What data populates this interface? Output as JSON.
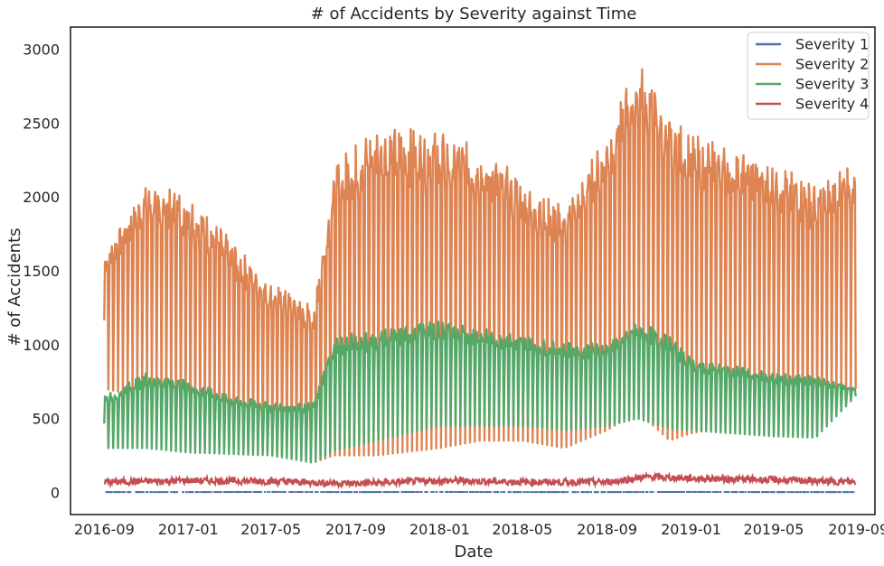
{
  "chart_data": {
    "type": "line",
    "title": "# of Accidents by Severity against Time",
    "xlabel": "Date",
    "ylabel": "# of Accidents",
    "x_range": [
      "2016-07-14",
      "2019-09-25"
    ],
    "ylim": [
      -150,
      3150
    ],
    "x_ticks": [
      "2016-09",
      "2017-01",
      "2017-05",
      "2017-09",
      "2018-01",
      "2018-05",
      "2018-09",
      "2019-01",
      "2019-05",
      "2019-09"
    ],
    "y_ticks": [
      0,
      500,
      1000,
      1500,
      2000,
      2500,
      3000
    ],
    "grid": false,
    "legend_position": "top-right",
    "frequency": "daily",
    "series": [
      {
        "name": "Severity 1",
        "color": "#4c72b0",
        "style": "sparse dotted near zero",
        "x": [
          "2016-09-01",
          "2017-01-01",
          "2017-05-01",
          "2017-09-01",
          "2018-01-01",
          "2018-05-01",
          "2018-09-01",
          "2019-01-01",
          "2019-05-01",
          "2019-08-28"
        ],
        "values": [
          2,
          2,
          3,
          2,
          3,
          2,
          2,
          3,
          2,
          2
        ]
      },
      {
        "name": "Severity 2",
        "color": "#dd8452",
        "style": "weekly oscillation (weekday peaks, weekend troughs)",
        "x": [
          "2016-09-01",
          "2016-11-01",
          "2017-01-01",
          "2017-03-01",
          "2017-05-01",
          "2017-07-01",
          "2017-08-01",
          "2017-10-01",
          "2018-01-01",
          "2018-03-01",
          "2018-05-01",
          "2018-07-01",
          "2018-09-01",
          "2018-10-15",
          "2018-12-01",
          "2019-01-01",
          "2019-03-01",
          "2019-05-01",
          "2019-07-01",
          "2019-08-28"
        ],
        "peak": [
          1600,
          2050,
          2000,
          1700,
          1400,
          1250,
          2200,
          2450,
          2400,
          2300,
          2100,
          1900,
          2400,
          2900,
          2500,
          2400,
          2300,
          2200,
          2050,
          2200
        ],
        "trough": [
          700,
          650,
          350,
          300,
          280,
          200,
          250,
          250,
          300,
          350,
          350,
          300,
          420,
          550,
          350,
          400,
          450,
          400,
          380,
          700
        ]
      },
      {
        "name": "Severity 3",
        "color": "#55a868",
        "style": "weekly oscillation (weekday peaks, weekend troughs)",
        "x": [
          "2016-09-01",
          "2016-11-01",
          "2017-01-01",
          "2017-03-01",
          "2017-05-01",
          "2017-07-01",
          "2017-08-01",
          "2017-10-01",
          "2018-01-01",
          "2018-03-01",
          "2018-05-01",
          "2018-07-01",
          "2018-09-01",
          "2018-10-15",
          "2018-12-01",
          "2019-01-01",
          "2019-03-01",
          "2019-05-01",
          "2019-07-01",
          "2019-08-28"
        ],
        "peak": [
          650,
          800,
          750,
          650,
          600,
          600,
          1050,
          1080,
          1150,
          1100,
          1050,
          1000,
          1000,
          1150,
          1050,
          900,
          850,
          800,
          780,
          700
        ],
        "trough": [
          300,
          300,
          270,
          260,
          250,
          200,
          280,
          350,
          450,
          450,
          450,
          420,
          450,
          500,
          430,
          420,
          400,
          380,
          370,
          650
        ]
      },
      {
        "name": "Severity 4",
        "color": "#c44e52",
        "style": "noisy near-constant",
        "x": [
          "2016-09-01",
          "2017-01-01",
          "2017-05-01",
          "2017-09-01",
          "2018-01-01",
          "2018-05-01",
          "2018-09-01",
          "2018-11-01",
          "2019-01-01",
          "2019-05-01",
          "2019-08-28"
        ],
        "values": [
          70,
          80,
          75,
          60,
          80,
          70,
          70,
          105,
          95,
          85,
          70
        ]
      }
    ]
  }
}
